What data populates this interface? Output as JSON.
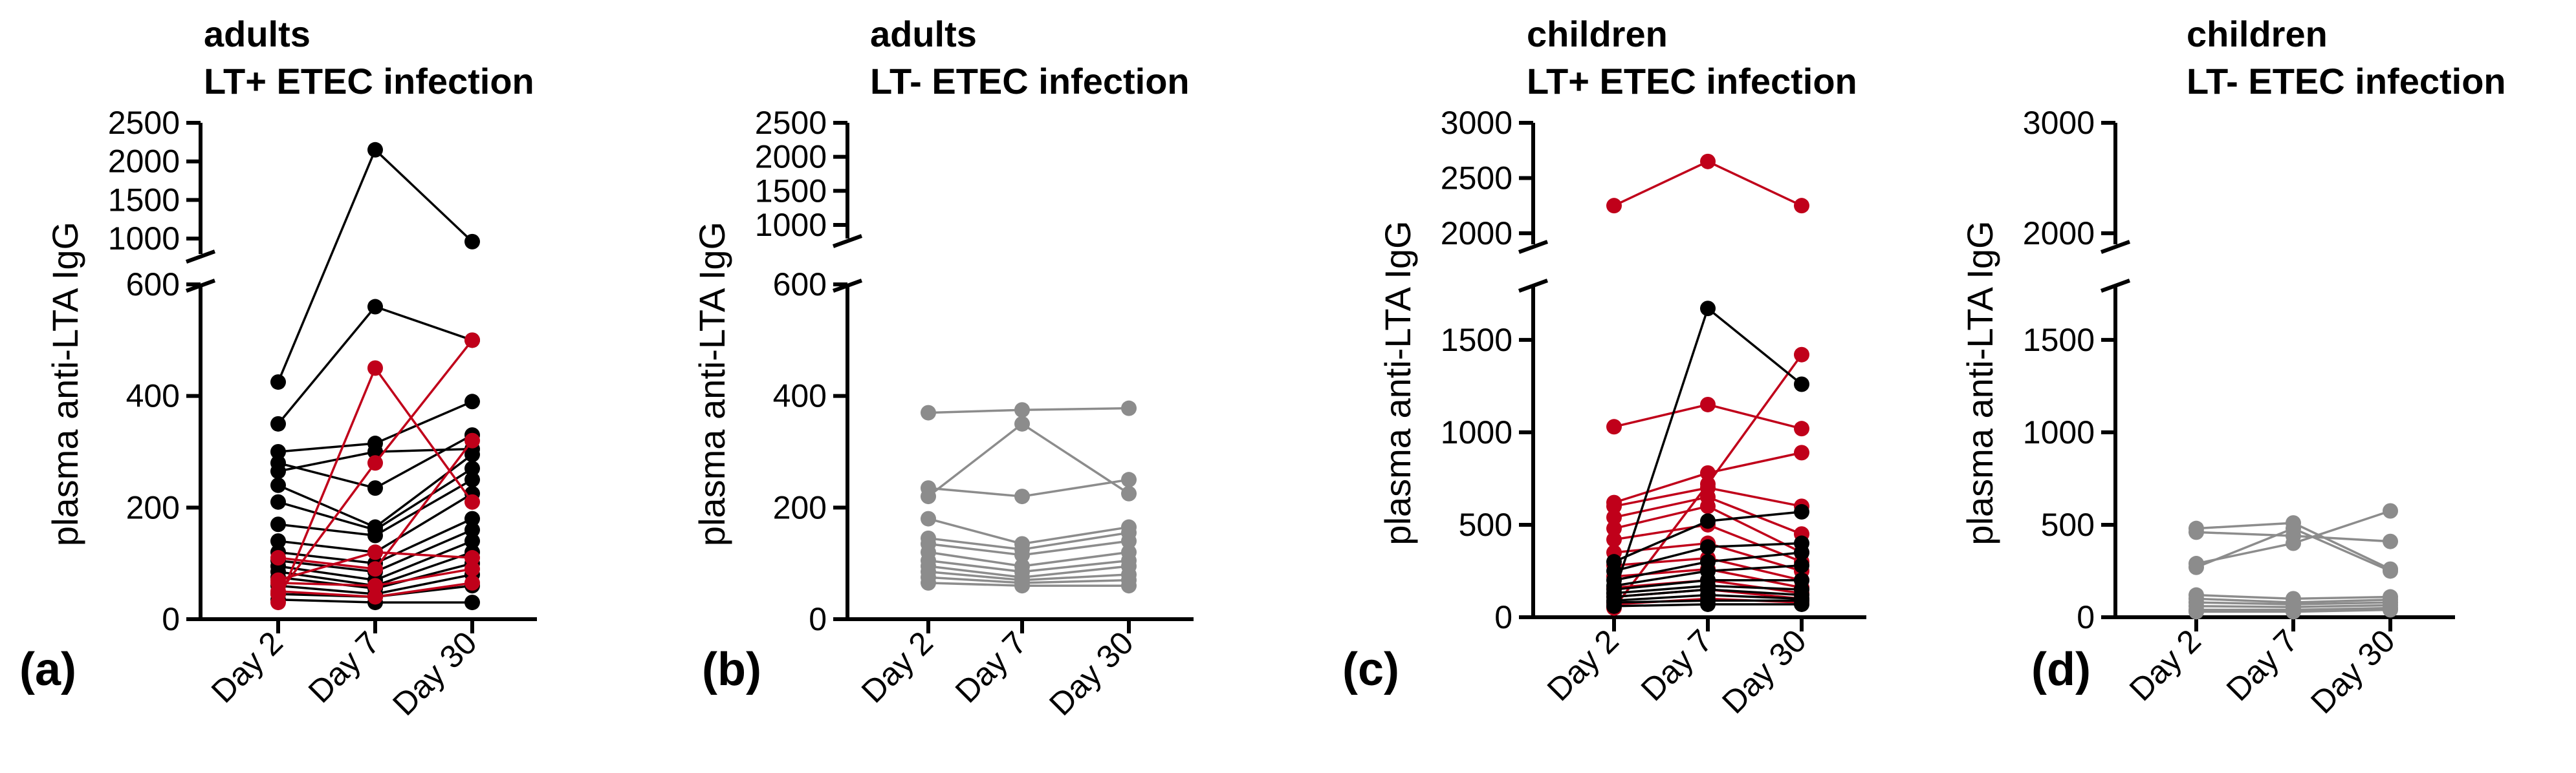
{
  "colors": {
    "LT_plus": "#c0001a",
    "LT_minus": "#000000",
    "not_applicable": "#8c8c8c",
    "axis": "#000000"
  },
  "chart_data": [
    {
      "type": "line",
      "panel_label": "(a)",
      "title_line1": "adults",
      "title_line2": "LT+ ETEC infection",
      "ylabel": "plasma anti-LTA IgG",
      "categories": [
        "Day 2",
        "Day 7",
        "Day 30"
      ],
      "y_segments": [
        {
          "ylim": [
            0,
            600
          ],
          "ticks": [
            0,
            200,
            400,
            600
          ]
        },
        {
          "ylim": [
            800,
            2500
          ],
          "ticks": [
            1000,
            1500,
            2000,
            2500
          ]
        }
      ],
      "y_break": true,
      "series": [
        {
          "color_key": "LT_minus",
          "values": [
            425,
            2150,
            960
          ]
        },
        {
          "color_key": "LT_minus",
          "values": [
            350,
            560,
            500
          ]
        },
        {
          "color_key": "LT_minus",
          "values": [
            300,
            315,
            390
          ]
        },
        {
          "color_key": "LT_minus",
          "values": [
            280,
            235,
            330
          ]
        },
        {
          "color_key": "LT_minus",
          "values": [
            265,
            300,
            305
          ]
        },
        {
          "color_key": "LT_minus",
          "values": [
            240,
            165,
            295
          ]
        },
        {
          "color_key": "LT_minus",
          "values": [
            210,
            160,
            270
          ]
        },
        {
          "color_key": "LT_minus",
          "values": [
            170,
            150,
            250
          ]
        },
        {
          "color_key": "LT_minus",
          "values": [
            140,
            120,
            225
          ]
        },
        {
          "color_key": "LT_minus",
          "values": [
            120,
            100,
            180
          ]
        },
        {
          "color_key": "LT_minus",
          "values": [
            105,
            85,
            160
          ]
        },
        {
          "color_key": "LT_minus",
          "values": [
            95,
            70,
            140
          ]
        },
        {
          "color_key": "LT_minus",
          "values": [
            85,
            60,
            120
          ]
        },
        {
          "color_key": "LT_minus",
          "values": [
            75,
            55,
            100
          ]
        },
        {
          "color_key": "LT_minus",
          "values": [
            60,
            45,
            80
          ]
        },
        {
          "color_key": "LT_minus",
          "values": [
            45,
            40,
            60
          ]
        },
        {
          "color_key": "LT_minus",
          "values": [
            35,
            30,
            30
          ]
        },
        {
          "color_key": "LT_plus",
          "values": [
            30,
            450,
            210
          ]
        },
        {
          "color_key": "LT_plus",
          "values": [
            45,
            280,
            500
          ]
        },
        {
          "color_key": "LT_plus",
          "values": [
            110,
            90,
            320
          ]
        },
        {
          "color_key": "LT_plus",
          "values": [
            70,
            120,
            110
          ]
        },
        {
          "color_key": "LT_plus",
          "values": [
            65,
            60,
            90
          ]
        },
        {
          "color_key": "LT_plus",
          "values": [
            50,
            40,
            65
          ]
        }
      ]
    },
    {
      "type": "line",
      "panel_label": "(b)",
      "title_line1": "adults",
      "title_line2": "LT- ETEC infection",
      "ylabel": "plasma anti-LTA IgG",
      "categories": [
        "Day 2",
        "Day 7",
        "Day 30"
      ],
      "y_segments": [
        {
          "ylim": [
            0,
            600
          ],
          "ticks": [
            0,
            200,
            400,
            600
          ]
        },
        {
          "ylim": [
            800,
            2500
          ],
          "ticks": [
            1000,
            1500,
            2000,
            2500
          ]
        }
      ],
      "y_break": true,
      "series": [
        {
          "color_key": "not_applicable",
          "values": [
            370,
            375,
            378
          ]
        },
        {
          "color_key": "not_applicable",
          "values": [
            235,
            220,
            250
          ]
        },
        {
          "color_key": "not_applicable",
          "values": [
            220,
            350,
            225
          ]
        },
        {
          "color_key": "not_applicable",
          "values": [
            180,
            135,
            165
          ]
        },
        {
          "color_key": "not_applicable",
          "values": [
            145,
            125,
            155
          ]
        },
        {
          "color_key": "not_applicable",
          "values": [
            135,
            115,
            140
          ]
        },
        {
          "color_key": "not_applicable",
          "values": [
            120,
            95,
            120
          ]
        },
        {
          "color_key": "not_applicable",
          "values": [
            105,
            85,
            105
          ]
        },
        {
          "color_key": "not_applicable",
          "values": [
            95,
            75,
            95
          ]
        },
        {
          "color_key": "not_applicable",
          "values": [
            85,
            70,
            80
          ]
        },
        {
          "color_key": "not_applicable",
          "values": [
            75,
            65,
            70
          ]
        },
        {
          "color_key": "not_applicable",
          "values": [
            65,
            60,
            60
          ]
        }
      ]
    },
    {
      "type": "line",
      "panel_label": "(c)",
      "title_line1": "children",
      "title_line2": "LT+ ETEC infection",
      "ylabel": "plasma anti-LTA IgG",
      "categories": [
        "Day 2",
        "Day 7",
        "Day 30"
      ],
      "y_segments": [
        {
          "ylim": [
            0,
            1800
          ],
          "ticks": [
            0,
            500,
            1000,
            1500
          ]
        },
        {
          "ylim": [
            1900,
            3000
          ],
          "ticks": [
            2000,
            2500,
            3000
          ]
        }
      ],
      "y_break": true,
      "series": [
        {
          "color_key": "LT_plus",
          "values": [
            2250,
            2650,
            2250
          ]
        },
        {
          "color_key": "LT_plus",
          "values": [
            1030,
            1150,
            1020
          ]
        },
        {
          "color_key": "LT_plus",
          "values": [
            620,
            780,
            890
          ]
        },
        {
          "color_key": "LT_plus",
          "values": [
            600,
            700,
            600
          ]
        },
        {
          "color_key": "LT_plus",
          "values": [
            540,
            650,
            450
          ]
        },
        {
          "color_key": "LT_plus",
          "values": [
            480,
            600,
            350
          ]
        },
        {
          "color_key": "LT_plus",
          "values": [
            420,
            500,
            300
          ]
        },
        {
          "color_key": "LT_plus",
          "values": [
            350,
            400,
            250
          ]
        },
        {
          "color_key": "LT_plus",
          "values": [
            280,
            320,
            200
          ]
        },
        {
          "color_key": "LT_plus",
          "values": [
            220,
            260,
            160
          ]
        },
        {
          "color_key": "LT_plus",
          "values": [
            160,
            200,
            130
          ]
        },
        {
          "color_key": "LT_plus",
          "values": [
            110,
            150,
            100
          ]
        },
        {
          "color_key": "LT_plus",
          "values": [
            70,
            100,
            80
          ]
        },
        {
          "color_key": "LT_plus",
          "values": [
            50,
            720,
            1420
          ]
        },
        {
          "color_key": "LT_minus",
          "values": [
            130,
            1670,
            1260
          ]
        },
        {
          "color_key": "LT_minus",
          "values": [
            300,
            520,
            570
          ]
        },
        {
          "color_key": "LT_minus",
          "values": [
            250,
            380,
            400
          ]
        },
        {
          "color_key": "LT_minus",
          "values": [
            200,
            300,
            350
          ]
        },
        {
          "color_key": "LT_minus",
          "values": [
            170,
            250,
            280
          ]
        },
        {
          "color_key": "LT_minus",
          "values": [
            150,
            200,
            200
          ]
        },
        {
          "color_key": "LT_minus",
          "values": [
            130,
            170,
            150
          ]
        },
        {
          "color_key": "LT_minus",
          "values": [
            110,
            150,
            120
          ]
        },
        {
          "color_key": "LT_minus",
          "values": [
            90,
            120,
            100
          ]
        },
        {
          "color_key": "LT_minus",
          "values": [
            80,
            90,
            90
          ]
        },
        {
          "color_key": "LT_minus",
          "values": [
            60,
            70,
            70
          ]
        }
      ]
    },
    {
      "type": "line",
      "panel_label": "(d)",
      "title_line1": "children",
      "title_line2": "LT- ETEC infection",
      "ylabel": "plasma anti-LTA IgG",
      "categories": [
        "Day 2",
        "Day 7",
        "Day 30"
      ],
      "y_segments": [
        {
          "ylim": [
            0,
            1800
          ],
          "ticks": [
            0,
            500,
            1000,
            1500
          ]
        },
        {
          "ylim": [
            1900,
            3000
          ],
          "ticks": [
            2000,
            3000
          ]
        }
      ],
      "y_break": true,
      "series": [
        {
          "color_key": "not_applicable",
          "values": [
            480,
            510,
            260
          ]
        },
        {
          "color_key": "not_applicable",
          "values": [
            460,
            440,
            410
          ]
        },
        {
          "color_key": "not_applicable",
          "values": [
            290,
            400,
            575
          ]
        },
        {
          "color_key": "not_applicable",
          "values": [
            270,
            480,
            250
          ]
        },
        {
          "color_key": "not_applicable",
          "values": [
            120,
            100,
            110
          ]
        },
        {
          "color_key": "not_applicable",
          "values": [
            100,
            80,
            95
          ]
        },
        {
          "color_key": "not_applicable",
          "values": [
            80,
            70,
            80
          ]
        },
        {
          "color_key": "not_applicable",
          "values": [
            60,
            55,
            65
          ]
        },
        {
          "color_key": "not_applicable",
          "values": [
            40,
            40,
            50
          ]
        },
        {
          "color_key": "not_applicable",
          "values": [
            30,
            30,
            40
          ]
        }
      ]
    }
  ]
}
